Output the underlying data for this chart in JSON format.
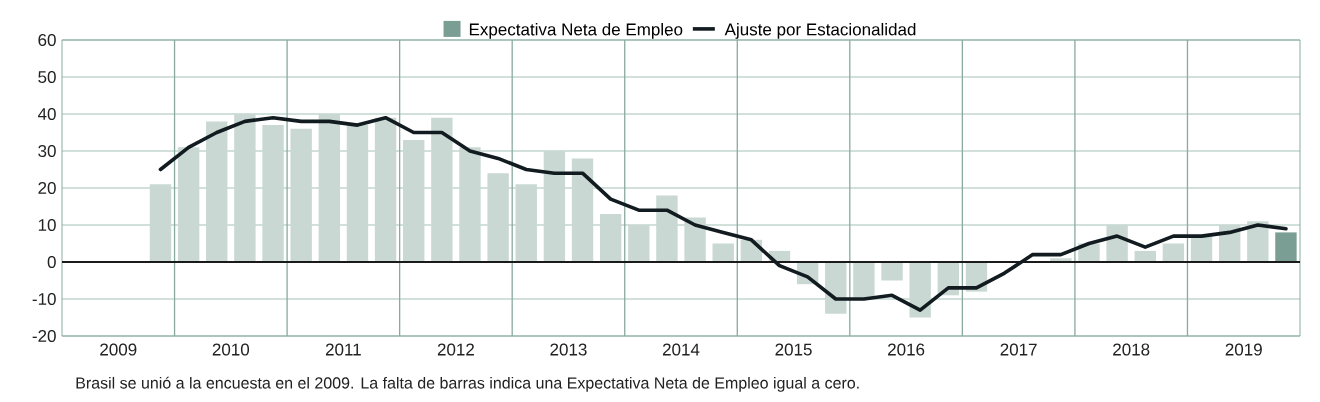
{
  "chart_data": {
    "type": "bar",
    "x": [
      2009.875,
      2010.125,
      2010.375,
      2010.625,
      2010.875,
      2011.125,
      2011.375,
      2011.625,
      2011.875,
      2012.125,
      2012.375,
      2012.625,
      2012.875,
      2013.125,
      2013.375,
      2013.625,
      2013.875,
      2014.125,
      2014.375,
      2014.625,
      2014.875,
      2015.125,
      2015.375,
      2015.625,
      2015.875,
      2016.125,
      2016.375,
      2016.625,
      2016.875,
      2017.125,
      2017.375,
      2017.625,
      2017.875,
      2018.125,
      2018.375,
      2018.625,
      2018.875,
      2019.125,
      2019.375,
      2019.625,
      2019.875
    ],
    "series": [
      {
        "name": "Expectativa Neta de Empleo",
        "color": "#7a9e93",
        "values": [
          21,
          31,
          38,
          40,
          37,
          36,
          40,
          37,
          39,
          33,
          39,
          31,
          24,
          21,
          30,
          28,
          13,
          10,
          18,
          12,
          5,
          6,
          3,
          -6,
          -14,
          -10,
          -5,
          -15,
          -9,
          -8,
          0,
          null,
          1,
          5,
          10,
          3,
          5,
          7,
          10,
          11,
          8
        ],
        "colors": [
          "#c9d8d3",
          "#c9d8d3",
          "#c9d8d3",
          "#c9d8d3",
          "#c9d8d3",
          "#c9d8d3",
          "#c9d8d3",
          "#c9d8d3",
          "#c9d8d3",
          "#c9d8d3",
          "#c9d8d3",
          "#c9d8d3",
          "#c9d8d3",
          "#c9d8d3",
          "#c9d8d3",
          "#c9d8d3",
          "#c9d8d3",
          "#c9d8d3",
          "#c9d8d3",
          "#c9d8d3",
          "#c9d8d3",
          "#c9d8d3",
          "#c9d8d3",
          "#c9d8d3",
          "#c9d8d3",
          "#c9d8d3",
          "#c9d8d3",
          "#c9d8d3",
          "#c9d8d3",
          "#c9d8d3",
          "#c9d8d3",
          "#c9d8d3",
          "#c9d8d3",
          "#c9d8d3",
          "#c9d8d3",
          "#c9d8d3",
          "#c9d8d3",
          "#c9d8d3",
          "#c9d8d3",
          "#c9d8d3",
          "#7a9e93"
        ]
      },
      {
        "name": "Ajuste por Estacionalidad",
        "type": "line",
        "color": "#111b20",
        "values": [
          25,
          31,
          35,
          38,
          39,
          38,
          38,
          37,
          39,
          35,
          35,
          30,
          28,
          25,
          24,
          24,
          17,
          14,
          14,
          10,
          8,
          6,
          -1,
          -4,
          -10,
          -10,
          -9,
          -13,
          -7,
          -7,
          -3,
          2,
          2,
          5,
          7,
          4,
          7,
          7,
          8,
          10,
          9
        ]
      }
    ],
    "xlim": [
      2009,
      2020
    ],
    "xticks": [
      {
        "value": 2009.5,
        "label": "2009"
      },
      {
        "value": 2010,
        "label": null
      },
      {
        "value": 2010.5,
        "label": "2010"
      },
      {
        "value": 2011,
        "label": null
      },
      {
        "value": 2011.5,
        "label": "2011"
      },
      {
        "value": 2012,
        "label": null
      },
      {
        "value": 2012.5,
        "label": "2012"
      },
      {
        "value": 2013,
        "label": null
      },
      {
        "value": 2013.5,
        "label": "2013"
      },
      {
        "value": 2014,
        "label": null
      },
      {
        "value": 2014.5,
        "label": "2014"
      },
      {
        "value": 2015,
        "label": null
      },
      {
        "value": 2015.5,
        "label": "2015"
      },
      {
        "value": 2016,
        "label": null
      },
      {
        "value": 2016.5,
        "label": "2016"
      },
      {
        "value": 2017,
        "label": null
      },
      {
        "value": 2017.5,
        "label": "2017"
      },
      {
        "value": 2018,
        "label": null
      },
      {
        "value": 2018.5,
        "label": "2018"
      },
      {
        "value": 2019,
        "label": null
      },
      {
        "value": 2019.5,
        "label": "2019"
      }
    ],
    "ylim": [
      -20,
      60
    ],
    "yticks": [
      -20,
      -10,
      0,
      10,
      20,
      30,
      40,
      50,
      60
    ],
    "grid": true,
    "legend": "top",
    "line_style": "solid",
    "ref_lines": [
      {
        "axis": "y",
        "value": 0,
        "color": "#1a1a1a"
      }
    ],
    "annotations": [
      "Brasil se unió a la encuesta en el 2009.  La falta de barras indica una Expectativa Neta de Empleo igual a cero."
    ]
  }
}
